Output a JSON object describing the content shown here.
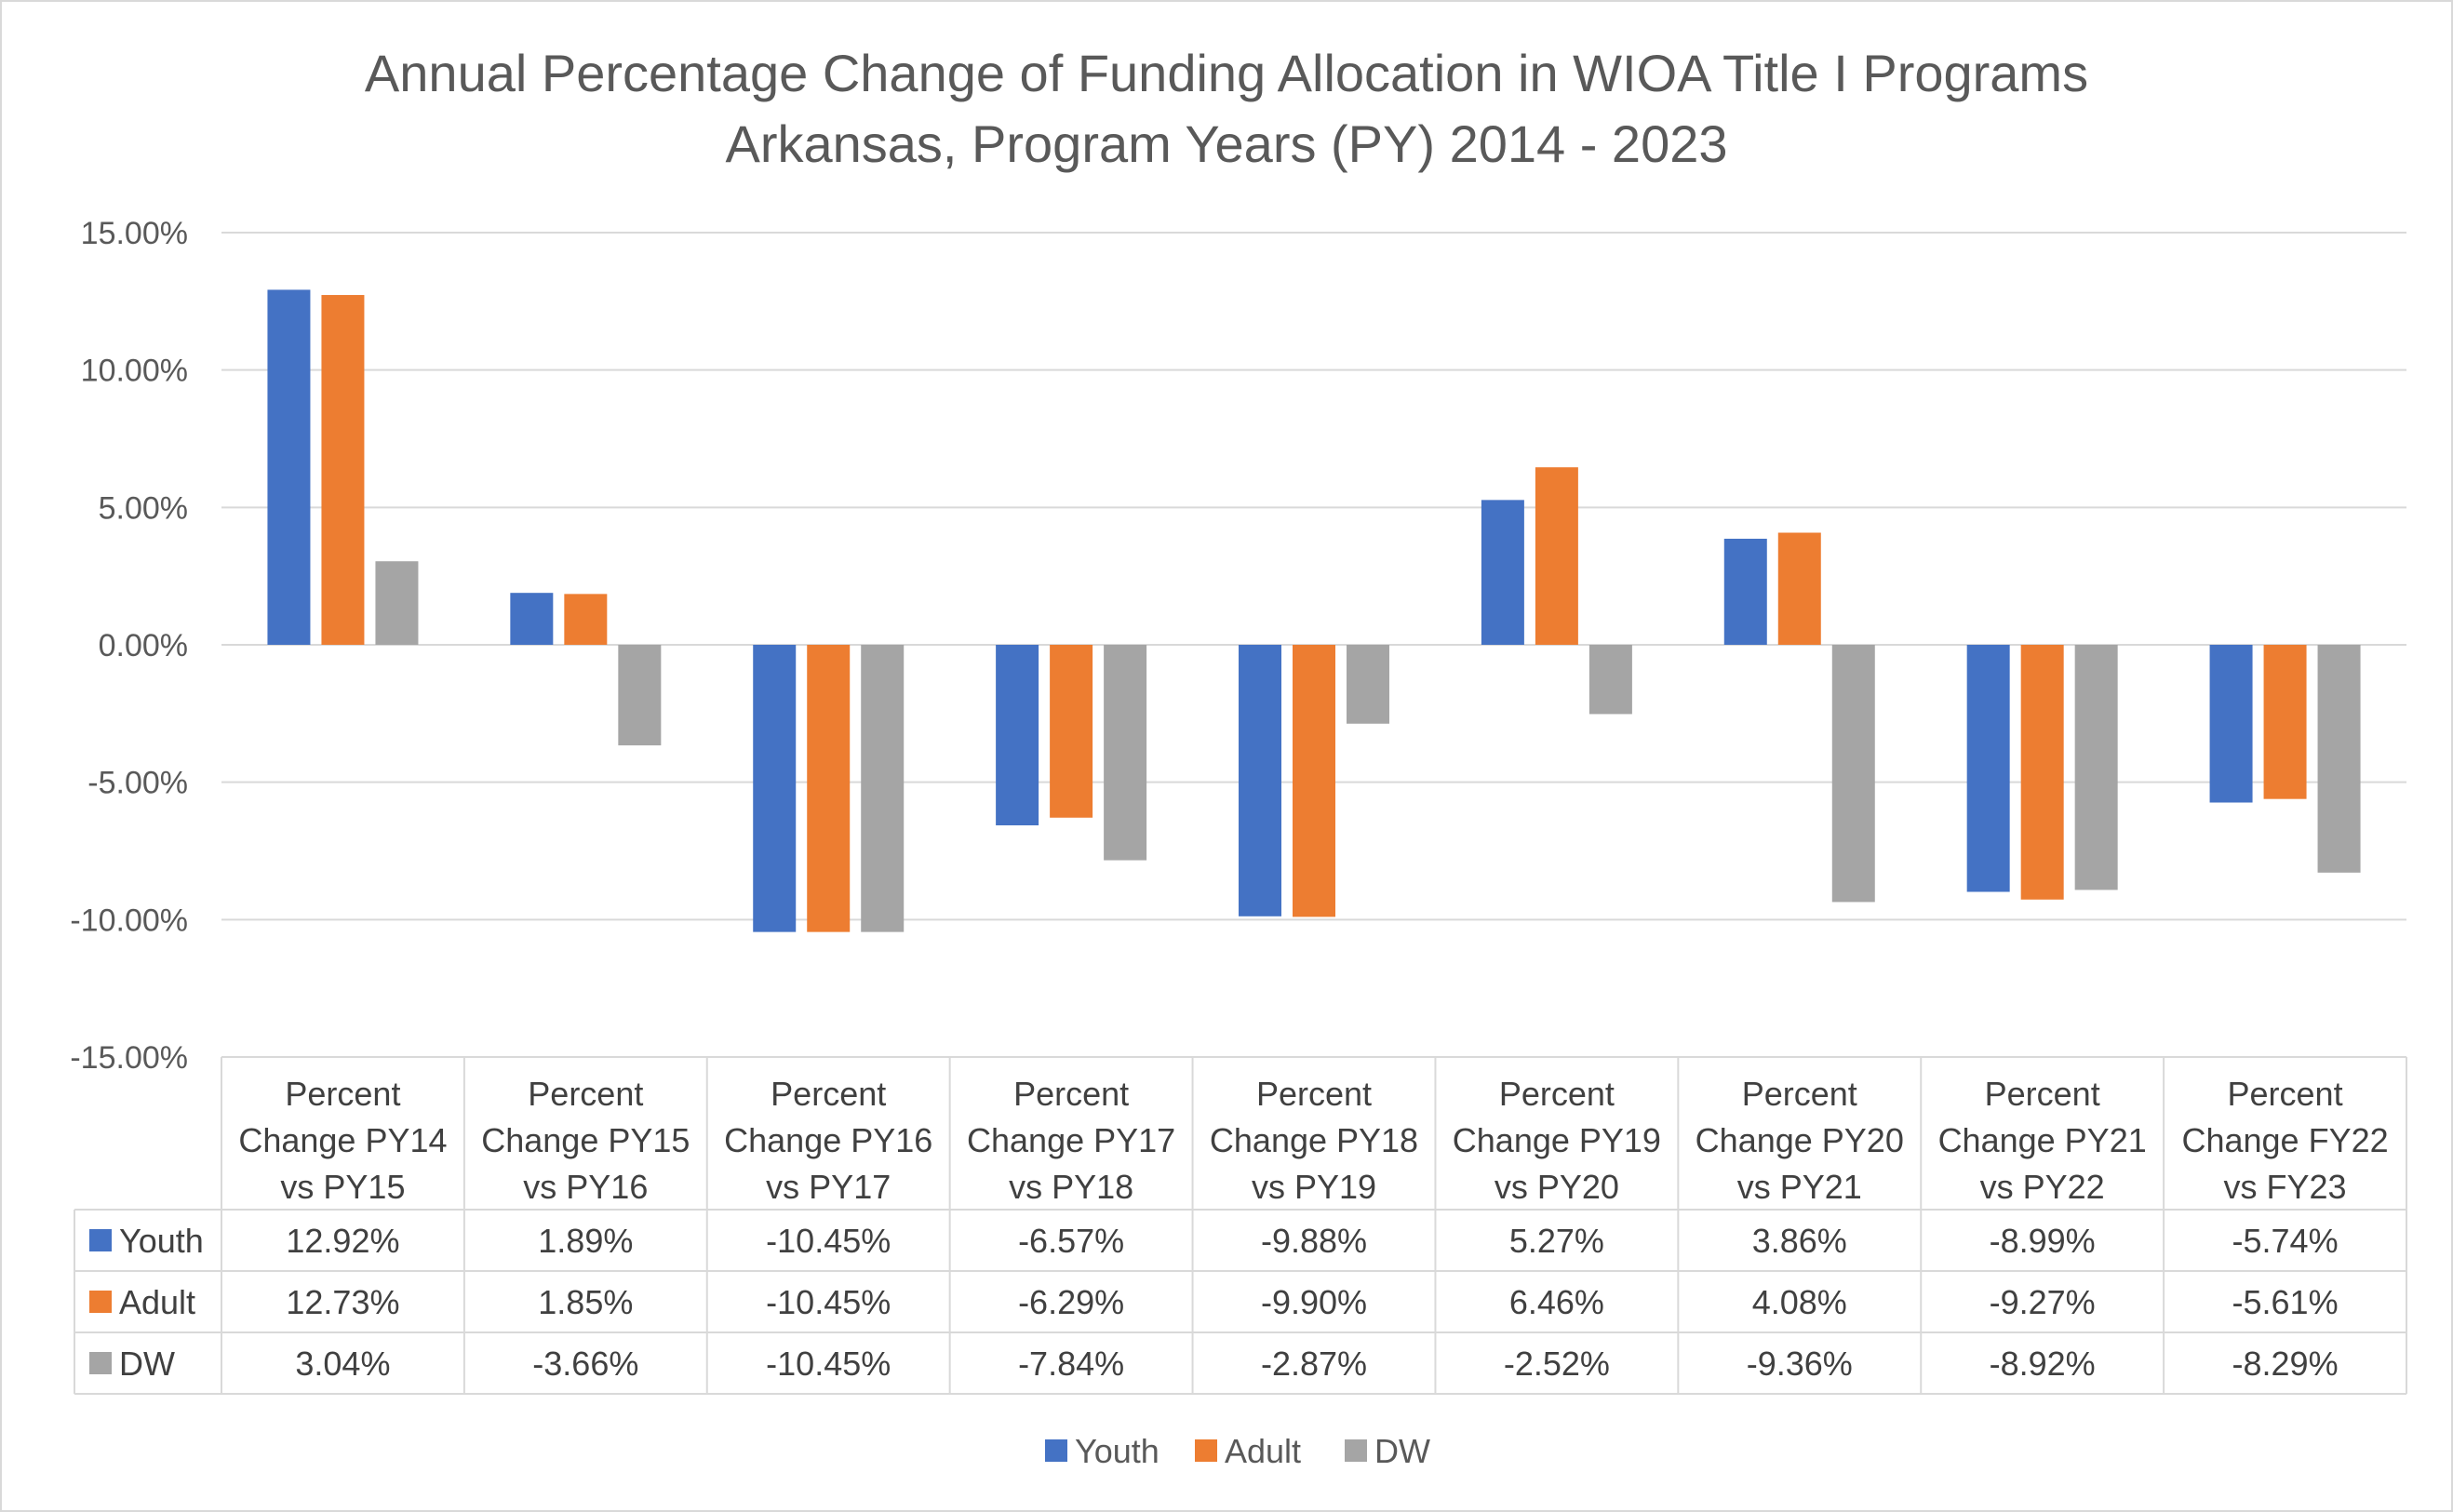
{
  "chart_data": {
    "type": "bar",
    "title": "Annual Percentage Change of Funding Allocation in WIOA Title I Programs",
    "subtitle": "Arkansas, Program Years (PY) 2014 - 2023",
    "categories": [
      [
        "Percent",
        "Change PY14",
        "vs PY15"
      ],
      [
        "Percent",
        "Change PY15",
        "vs PY16"
      ],
      [
        "Percent",
        "Change PY16",
        "vs PY17"
      ],
      [
        "Percent",
        "Change PY17",
        "vs PY18"
      ],
      [
        "Percent",
        "Change PY18",
        "vs PY19"
      ],
      [
        "Percent",
        "Change PY19",
        "vs PY20"
      ],
      [
        "Percent",
        "Change PY20",
        "vs PY21"
      ],
      [
        "Percent",
        "Change PY21",
        "vs PY22"
      ],
      [
        "Percent",
        "Change FY22",
        "vs FY23"
      ]
    ],
    "series": [
      {
        "name": "Youth",
        "color": "#4472c4",
        "values": [
          12.92,
          1.89,
          -10.45,
          -6.57,
          -9.88,
          5.27,
          3.86,
          -8.99,
          -5.74
        ],
        "labels": [
          "12.92%",
          "1.89%",
          "-10.45%",
          "-6.57%",
          "-9.88%",
          "5.27%",
          "3.86%",
          "-8.99%",
          "-5.74%"
        ]
      },
      {
        "name": "Adult",
        "color": "#ed7d31",
        "values": [
          12.73,
          1.85,
          -10.45,
          -6.29,
          -9.9,
          6.46,
          4.08,
          -9.27,
          -5.61
        ],
        "labels": [
          "12.73%",
          "1.85%",
          "-10.45%",
          "-6.29%",
          "-9.90%",
          "6.46%",
          "4.08%",
          "-9.27%",
          "-5.61%"
        ]
      },
      {
        "name": "DW",
        "color": "#a5a5a5",
        "values": [
          3.04,
          -3.66,
          -10.45,
          -7.84,
          -2.87,
          -2.52,
          -9.36,
          -8.92,
          -8.29
        ],
        "labels": [
          "3.04%",
          "-3.66%",
          "-10.45%",
          "-7.84%",
          "-2.87%",
          "-2.52%",
          "-9.36%",
          "-8.92%",
          "-8.29%"
        ]
      }
    ],
    "yticks": [
      15,
      10,
      5,
      0,
      -5,
      -10,
      -15
    ],
    "ytick_labels": [
      "15.00%",
      "10.00%",
      "5.00%",
      "0.00%",
      "-5.00%",
      "-10.00%",
      "-15.00%"
    ],
    "ylim": [
      -15,
      15
    ],
    "grid": true,
    "legend": "bottom",
    "data_table": true
  }
}
